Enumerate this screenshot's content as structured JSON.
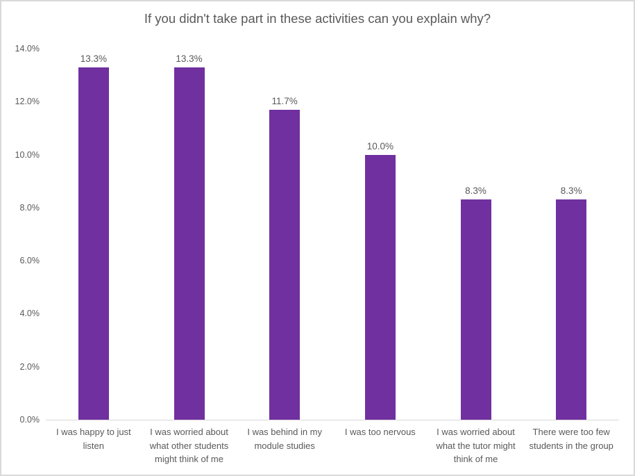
{
  "chart_data": {
    "type": "bar",
    "title": "If you didn't take part in these activities can you explain why?",
    "categories": [
      "I was happy to just listen",
      "I was worried about what other students might think of me",
      "I was behind in my module studies",
      "I was too nervous",
      "I was worried about what the tutor might think of me",
      "There were too few students in the group"
    ],
    "values": [
      13.3,
      13.3,
      11.7,
      10.0,
      8.3,
      8.3
    ],
    "value_labels": [
      "13.3%",
      "13.3%",
      "11.7%",
      "10.0%",
      "8.3%",
      "8.3%"
    ],
    "xlabel": "",
    "ylabel": "",
    "ylim": [
      0,
      14
    ],
    "ytick_labels": [
      "0.0%",
      "2.0%",
      "4.0%",
      "6.0%",
      "8.0%",
      "10.0%",
      "12.0%",
      "14.0%"
    ],
    "grid": false,
    "legend_position": "none",
    "bar_color": "#7030A0",
    "axis_line_color": "#D9D9D9",
    "label_color": "#595959",
    "border_color": "#D9D9D9",
    "background": "#FFFFFF"
  }
}
